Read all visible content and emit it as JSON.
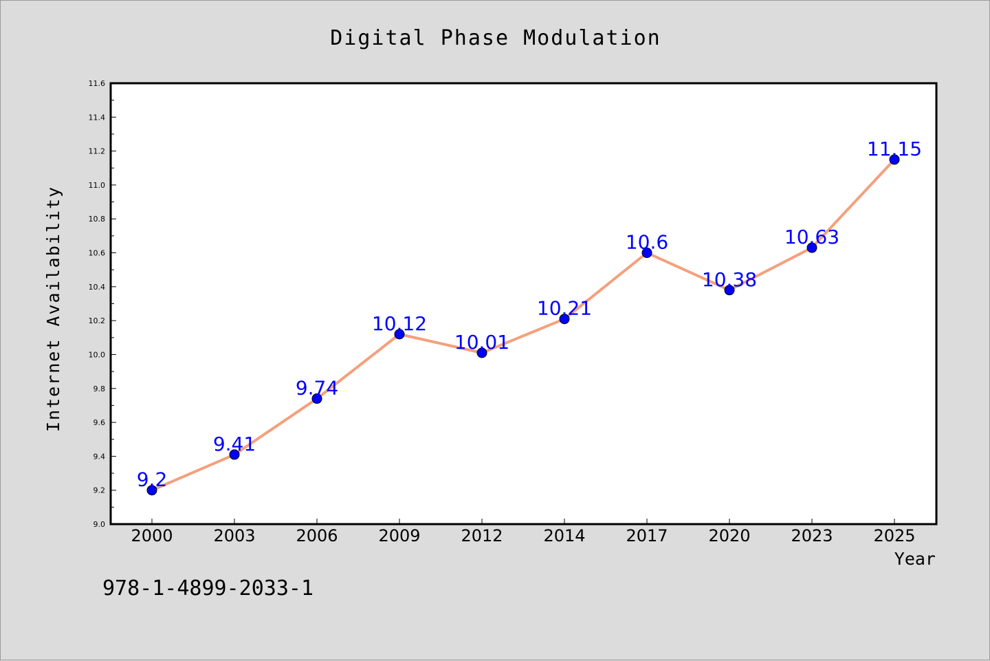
{
  "chart_data": {
    "type": "line",
    "title": "Digital Phase Modulation",
    "xlabel": "Year",
    "ylabel": "Internet Availability",
    "categories": [
      "2000",
      "2003",
      "2006",
      "2009",
      "2012",
      "2014",
      "2017",
      "2020",
      "2023",
      "2025"
    ],
    "series": [
      {
        "values": [
          9.2,
          9.41,
          9.74,
          10.12,
          10.01,
          10.21,
          10.6,
          10.38,
          10.63,
          11.15
        ],
        "data_labels": [
          "9.2",
          "9.41",
          "9.74",
          "10.12",
          "10.01",
          "10.21",
          "10.6",
          "10.38",
          "10.63",
          "11.15"
        ],
        "line_color": "#f4a07c",
        "marker_color": "#0000ff"
      }
    ],
    "ylim": [
      9.0,
      11.6
    ],
    "yticks": [
      "9.0",
      "9.2",
      "9.4",
      "9.6",
      "9.8",
      "10.0",
      "10.2",
      "10.4",
      "10.6",
      "10.8",
      "11.0",
      "11.2",
      "11.4",
      "11.6"
    ],
    "grid": false,
    "legend": "none",
    "annotation": "978-1-4899-2033-1",
    "colors": {
      "background": "#dcdcdc",
      "plot_background": "#ffffff",
      "label_color": "#0000ff"
    }
  }
}
